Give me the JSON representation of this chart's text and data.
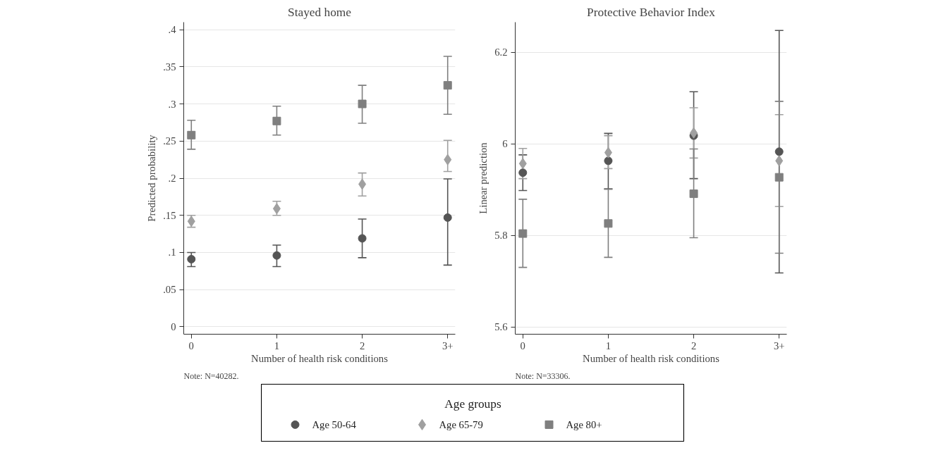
{
  "chart_data": [
    {
      "type": "scatter",
      "title": "Stayed home",
      "xlabel": "Number of health risk conditions",
      "ylabel": "Predicted probability",
      "categories": [
        "0",
        "1",
        "2",
        "3+"
      ],
      "ylim": [
        -0.01,
        0.41
      ],
      "yticks": [
        0,
        {
          "value": 0.05,
          "label": ".05"
        },
        {
          "value": 0.1,
          "label": ".1"
        },
        {
          "value": 0.15,
          "label": ".15"
        },
        {
          "value": 0.2,
          "label": ".2"
        },
        {
          "value": 0.25,
          "label": ".25"
        },
        {
          "value": 0.3,
          "label": ".3"
        },
        {
          "value": 0.35,
          "label": ".35"
        },
        {
          "value": 0.4,
          "label": ".4"
        }
      ],
      "grid": "y",
      "legend": "bottom",
      "legend_title": "Age groups",
      "annotations": [
        "Note: N=40282."
      ],
      "series": [
        {
          "name": "Age 50-64",
          "color": "#555555",
          "marker": "circle",
          "values": [
            0.091,
            0.096,
            0.119,
            0.147
          ],
          "errors": [
            [
              0.081,
              0.1
            ],
            [
              0.081,
              0.11
            ],
            [
              0.093,
              0.145
            ],
            [
              0.083,
              0.199
            ]
          ]
        },
        {
          "name": "Age 65-79",
          "color": "#a0a0a0",
          "marker": "diamond",
          "values": [
            0.142,
            0.159,
            0.192,
            0.225
          ],
          "errors": [
            [
              0.134,
              0.15
            ],
            [
              0.15,
              0.169
            ],
            [
              0.176,
              0.207
            ],
            [
              0.209,
              0.251
            ]
          ]
        },
        {
          "name": "Age 80+",
          "color": "#7f7f7f",
          "marker": "square",
          "values": [
            0.258,
            0.277,
            0.3,
            0.325
          ],
          "errors": [
            [
              0.239,
              0.278
            ],
            [
              0.258,
              0.297
            ],
            [
              0.274,
              0.325
            ],
            [
              0.286,
              0.364
            ]
          ]
        }
      ]
    },
    {
      "type": "scatter",
      "title": "Protective Behavior Index",
      "xlabel": "Number of health risk conditions",
      "ylabel": "Linear prediction",
      "categories": [
        "0",
        "1",
        "2",
        "3+"
      ],
      "ylim": [
        5.584,
        6.266
      ],
      "yticks": [
        5.6,
        5.8,
        6,
        6.2
      ],
      "grid": "y",
      "annotations": [
        "Note: N=33306."
      ],
      "series": [
        {
          "color": "#555555",
          "marker": "circle",
          "values": [
            5.937,
            5.963,
            6.018,
            5.983
          ],
          "errors": [
            [
              5.898,
              5.976
            ],
            [
              5.902,
              6.023
            ],
            [
              5.924,
              6.114
            ],
            [
              5.718,
              6.248
            ]
          ]
        },
        {
          "color": "#a0a0a0",
          "marker": "diamond",
          "values": [
            5.957,
            5.981,
            6.024,
            5.963
          ],
          "errors": [
            [
              5.924,
              5.99
            ],
            [
              5.946,
              6.018
            ],
            [
              5.969,
              6.079
            ],
            [
              5.863,
              6.064
            ]
          ]
        },
        {
          "color": "#7f7f7f",
          "marker": "square",
          "values": [
            5.804,
            5.826,
            5.891,
            5.927
          ],
          "errors": [
            [
              5.73,
              5.879
            ],
            [
              5.752,
              5.901
            ],
            [
              5.795,
              5.989
            ],
            [
              5.761,
              6.093
            ]
          ]
        }
      ]
    }
  ]
}
